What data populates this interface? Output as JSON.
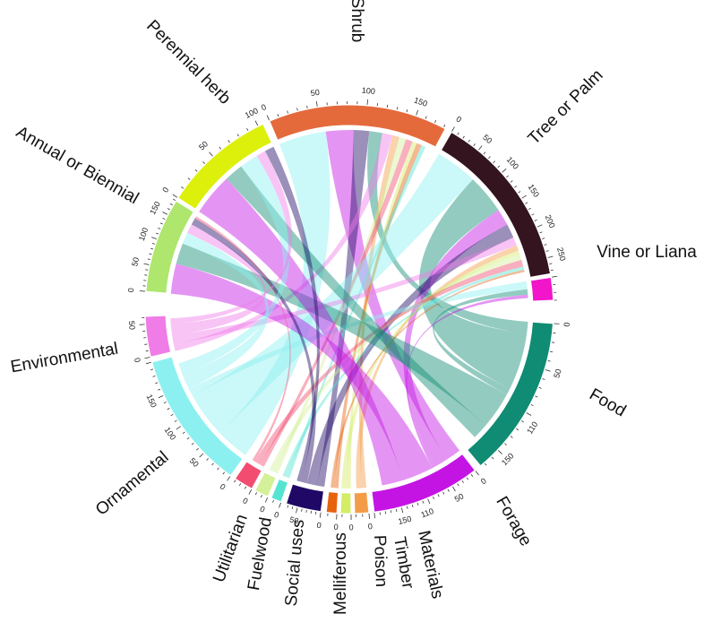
{
  "chart_data": {
    "type": "chord",
    "title": "",
    "scale_note": "",
    "segments": [
      {
        "id": "perennial",
        "label": "Perennial herb",
        "color": "#DDF00C",
        "total": 105,
        "ticks": [
          {
            "v": 0,
            "t": "0"
          },
          {
            "v": 50,
            "t": "50"
          },
          {
            "v": 100,
            "t": "100"
          }
        ]
      },
      {
        "id": "shrub",
        "label": "Shrub",
        "color": "#E46A3C",
        "total": 182,
        "ticks": [
          {
            "v": 0,
            "t": "0"
          },
          {
            "v": 50,
            "t": "50"
          },
          {
            "v": 100,
            "t": "100"
          },
          {
            "v": 150,
            "t": "150"
          }
        ]
      },
      {
        "id": "tree",
        "label": "Tree or Palm",
        "color": "#33141F",
        "total": 275,
        "ticks": [
          {
            "v": 0,
            "t": "0"
          },
          {
            "v": 50,
            "t": "50"
          },
          {
            "v": 100,
            "t": "100"
          },
          {
            "v": 150,
            "t": "150"
          },
          {
            "v": 200,
            "t": "200"
          },
          {
            "v": 250,
            "t": "250"
          }
        ]
      },
      {
        "id": "vine",
        "label": "Vine or Liana",
        "color": "#F215C9",
        "total": 30,
        "ticks": []
      },
      {
        "id": "food",
        "label": "Food",
        "color": "#0F8C73",
        "total": 175,
        "ticks": [
          {
            "v": 0,
            "t": "0"
          },
          {
            "v": 50,
            "t": "50"
          },
          {
            "v": 110,
            "t": "110"
          },
          {
            "v": 150,
            "t": "150"
          }
        ]
      },
      {
        "id": "forage",
        "label": "Forage",
        "color": "#C414E4",
        "total": 200,
        "ticks": [
          {
            "v": 0,
            "t": "0"
          },
          {
            "v": 50,
            "t": "50"
          },
          {
            "v": 110,
            "t": "110"
          },
          {
            "v": 150,
            "t": "150"
          }
        ]
      },
      {
        "id": "materials",
        "label": "Materials",
        "color": "#F39C48",
        "total": 22,
        "ticks": [
          {
            "v": 0,
            "t": "0"
          }
        ]
      },
      {
        "id": "timber",
        "label": "Timber",
        "color": "#D4EC66",
        "total": 12,
        "ticks": [
          {
            "v": 0,
            "t": "0"
          }
        ]
      },
      {
        "id": "poison",
        "label": "Poison",
        "color": "#E7620F",
        "total": 12,
        "ticks": [
          {
            "v": 0,
            "t": "0"
          }
        ]
      },
      {
        "id": "melliferous",
        "label": "Melliferous",
        "color": "#200866",
        "total": 75,
        "ticks": [
          {
            "v": 0,
            "t": "0"
          },
          {
            "v": 50,
            "t": "50"
          }
        ]
      },
      {
        "id": "social",
        "label": "Social uses",
        "color": "#55E4D2",
        "total": 14,
        "ticks": [
          {
            "v": 0,
            "t": "0"
          }
        ]
      },
      {
        "id": "fuelwood",
        "label": "Fuelwood",
        "color": "#D4F098",
        "total": 24,
        "ticks": [
          {
            "v": 0,
            "t": "0"
          }
        ]
      },
      {
        "id": "utilitarian",
        "label": "Utilitarian",
        "color": "#F24D70",
        "total": 32,
        "ticks": [
          {
            "v": 0,
            "t": "0"
          }
        ]
      },
      {
        "id": "ornamental",
        "label": "Ornamental",
        "color": "#8CF0F0",
        "total": 200,
        "ticks": [
          {
            "v": 0,
            "t": "0"
          },
          {
            "v": 50,
            "t": "50"
          },
          {
            "v": 100,
            "t": "100"
          },
          {
            "v": 150,
            "t": "150"
          }
        ]
      },
      {
        "id": "environmental",
        "label": "Environmental",
        "color": "#F07CE8",
        "total": 62,
        "ticks": [
          {
            "v": 0,
            "t": "0"
          },
          {
            "v": 50,
            "t": "50"
          }
        ]
      },
      {
        "id": "annual",
        "label": "Annual or Biennial",
        "color": "#AEE66E",
        "total": 180,
        "ticks": [
          {
            "v": 0,
            "t": "0"
          },
          {
            "v": 50,
            "t": "50"
          },
          {
            "v": 100,
            "t": "100"
          },
          {
            "v": 150,
            "t": "150"
          }
        ]
      }
    ],
    "links": [
      {
        "source": "shrub",
        "target": "ornamental",
        "value": 55
      },
      {
        "source": "shrub",
        "target": "forage",
        "value": 32
      },
      {
        "source": "shrub",
        "target": "melliferous",
        "value": 18
      },
      {
        "source": "shrub",
        "target": "food",
        "value": 15
      },
      {
        "source": "shrub",
        "target": "environmental",
        "value": 12
      },
      {
        "source": "shrub",
        "target": "materials",
        "value": 8
      },
      {
        "source": "shrub",
        "target": "fuelwood",
        "value": 8
      },
      {
        "source": "shrub",
        "target": "utilitarian",
        "value": 8
      },
      {
        "source": "shrub",
        "target": "timber",
        "value": 5
      },
      {
        "source": "shrub",
        "target": "poison",
        "value": 6
      },
      {
        "source": "shrub",
        "target": "social",
        "value": 5
      },
      {
        "source": "tree",
        "target": "ornamental",
        "value": 75
      },
      {
        "source": "tree",
        "target": "food",
        "value": 70
      },
      {
        "source": "tree",
        "target": "forage",
        "value": 30
      },
      {
        "source": "tree",
        "target": "melliferous",
        "value": 25
      },
      {
        "source": "tree",
        "target": "environmental",
        "value": 15
      },
      {
        "source": "tree",
        "target": "materials",
        "value": 10
      },
      {
        "source": "tree",
        "target": "timber",
        "value": 7
      },
      {
        "source": "tree",
        "target": "fuelwood",
        "value": 10
      },
      {
        "source": "tree",
        "target": "utilitarian",
        "value": 12
      },
      {
        "source": "tree",
        "target": "social",
        "value": 6
      },
      {
        "source": "tree",
        "target": "poison",
        "value": 4
      },
      {
        "source": "vine",
        "target": "ornamental",
        "value": 12
      },
      {
        "source": "vine",
        "target": "food",
        "value": 8
      },
      {
        "source": "vine",
        "target": "forage",
        "value": 5
      },
      {
        "source": "annual",
        "target": "forage",
        "value": 65
      },
      {
        "source": "annual",
        "target": "food",
        "value": 45
      },
      {
        "source": "annual",
        "target": "ornamental",
        "value": 25
      },
      {
        "source": "annual",
        "target": "environmental",
        "value": 20
      },
      {
        "source": "annual",
        "target": "melliferous",
        "value": 15
      },
      {
        "source": "annual",
        "target": "utilitarian",
        "value": 5
      },
      {
        "source": "perennial",
        "target": "forage",
        "value": 45
      },
      {
        "source": "perennial",
        "target": "food",
        "value": 20
      },
      {
        "source": "perennial",
        "target": "ornamental",
        "value": 20
      },
      {
        "source": "perennial",
        "target": "environmental",
        "value": 10
      },
      {
        "source": "perennial",
        "target": "melliferous",
        "value": 10
      }
    ]
  }
}
